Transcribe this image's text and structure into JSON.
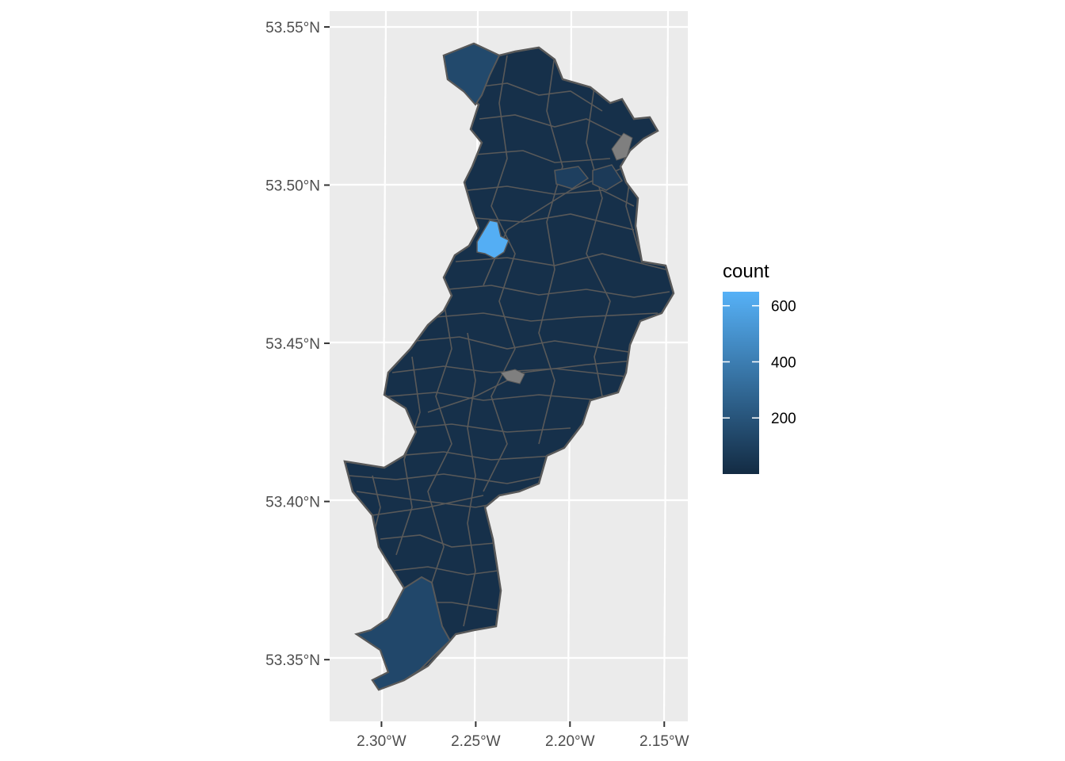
{
  "chart_data": {
    "type": "choropleth",
    "title": "",
    "xlabel": "",
    "ylabel": "",
    "x_ticks": [
      {
        "value": -2.3,
        "label": "2.30°W"
      },
      {
        "value": -2.25,
        "label": "2.25°W"
      },
      {
        "value": -2.2,
        "label": "2.20°W"
      },
      {
        "value": -2.15,
        "label": "2.15°W"
      }
    ],
    "y_ticks": [
      {
        "value": 53.55,
        "label": "53.55°N"
      },
      {
        "value": 53.5,
        "label": "53.50°N"
      },
      {
        "value": 53.45,
        "label": "53.45°N"
      },
      {
        "value": 53.4,
        "label": "53.40°N"
      },
      {
        "value": 53.35,
        "label": "53.35°N"
      }
    ],
    "xlim": [
      -2.3275,
      -2.1375
    ],
    "ylim": [
      53.3305,
      53.555
    ],
    "grid": true,
    "legend": {
      "title": "count",
      "position": "right",
      "scale": "continuous",
      "low_color": "#132b43",
      "high_color": "#56b1f7",
      "range": [
        0,
        650
      ],
      "breaks": [
        {
          "value": 600,
          "label": "600"
        },
        {
          "value": 400,
          "label": "400"
        },
        {
          "value": 200,
          "label": "200"
        }
      ]
    },
    "regions": [
      {
        "name": "",
        "count": 640
      },
      {
        "name": "",
        "count": 250
      },
      {
        "name": "",
        "count": 230
      }
    ],
    "colors": {
      "panel_background": "#ebebeb",
      "grid": "#ffffff",
      "boundary": "#595959",
      "missing": "#7f7f7f",
      "typical_region": "#17324c"
    }
  }
}
